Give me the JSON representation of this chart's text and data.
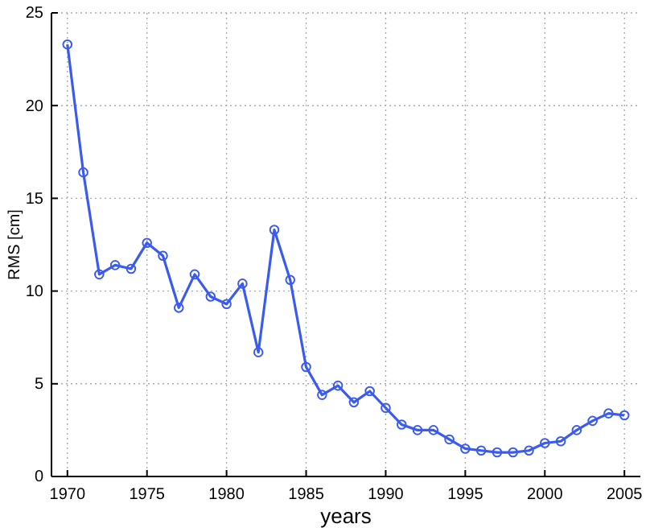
{
  "chart_data": {
    "type": "line",
    "xlabel": "years",
    "ylabel": "RMS [cm]",
    "x": [
      1970,
      1971,
      1972,
      1973,
      1974,
      1975,
      1976,
      1977,
      1978,
      1979,
      1980,
      1981,
      1982,
      1983,
      1984,
      1985,
      1986,
      1987,
      1988,
      1989,
      1990,
      1991,
      1992,
      1993,
      1994,
      1995,
      1996,
      1997,
      1998,
      1999,
      2000,
      2001,
      2002,
      2003,
      2004,
      2005
    ],
    "series": [
      {
        "color": "#3b5bf0",
        "values": [
          23.3,
          16.4,
          10.9,
          11.4,
          11.2,
          12.6,
          11.9,
          9.1,
          10.9,
          9.7,
          9.3,
          10.4,
          6.7,
          13.3,
          10.6,
          5.9,
          4.4,
          4.9,
          4.0,
          4.6,
          3.7,
          2.8,
          2.5,
          2.5,
          2.0,
          1.5,
          1.4,
          1.3,
          1.3,
          1.4,
          1.8,
          1.9,
          2.5,
          3.0,
          3.4,
          3.3
        ]
      }
    ],
    "xlim": [
      1969,
      2006
    ],
    "xticks": [
      1970,
      1975,
      1980,
      1985,
      1990,
      1995,
      2000,
      2005
    ],
    "ylim": [
      0,
      25
    ],
    "yticks": [
      0,
      5,
      10,
      15,
      20,
      25
    ],
    "grid": true,
    "marker": "circle",
    "line_style": "solid"
  }
}
